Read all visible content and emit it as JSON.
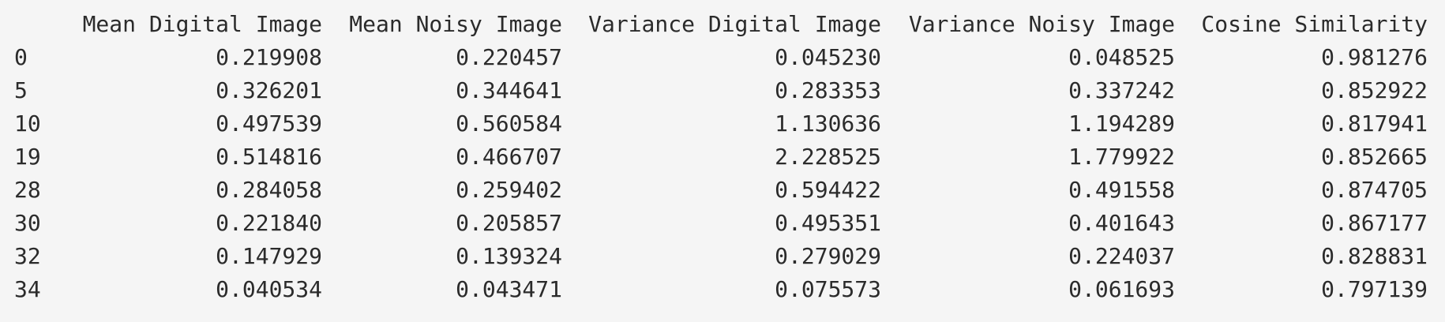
{
  "table": {
    "index_header": "",
    "columns": [
      "Mean Digital Image",
      "Mean Noisy Image",
      "Variance Digital Image",
      "Variance Noisy Image",
      "Cosine Similarity"
    ],
    "rows": [
      {
        "index": "0",
        "values": [
          "0.219908",
          "0.220457",
          "0.045230",
          "0.048525",
          "0.981276"
        ]
      },
      {
        "index": "5",
        "values": [
          "0.326201",
          "0.344641",
          "0.283353",
          "0.337242",
          "0.852922"
        ]
      },
      {
        "index": "10",
        "values": [
          "0.497539",
          "0.560584",
          "1.130636",
          "1.194289",
          "0.817941"
        ]
      },
      {
        "index": "19",
        "values": [
          "0.514816",
          "0.466707",
          "2.228525",
          "1.779922",
          "0.852665"
        ]
      },
      {
        "index": "28",
        "values": [
          "0.284058",
          "0.259402",
          "0.594422",
          "0.491558",
          "0.874705"
        ]
      },
      {
        "index": "30",
        "values": [
          "0.221840",
          "0.205857",
          "0.495351",
          "0.401643",
          "0.867177"
        ]
      },
      {
        "index": "32",
        "values": [
          "0.147929",
          "0.139324",
          "0.279029",
          "0.224037",
          "0.828831"
        ]
      },
      {
        "index": "34",
        "values": [
          "0.040534",
          "0.043471",
          "0.075573",
          "0.061693",
          "0.797139"
        ]
      }
    ]
  }
}
